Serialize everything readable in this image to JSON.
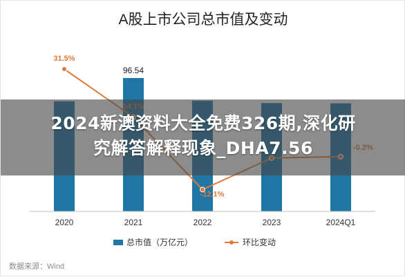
{
  "chart_data": {
    "type": "bar+line",
    "title": "A股上市公司总市值及变动",
    "categories": [
      "2020",
      "2021",
      "2022",
      "2023",
      "2024Q1"
    ],
    "series": [
      {
        "name": "总市值（万亿元）",
        "type": "bar",
        "color": "#1f77a6",
        "values": [
          79.7,
          96.54,
          80.1,
          78.4,
          78.2
        ],
        "labels": [
          "",
          "96.54",
          "",
          "",
          ""
        ]
      },
      {
        "name": "环比变动",
        "type": "line",
        "color": "#e07b39",
        "values": [
          31.5,
          14.1,
          -12.1,
          -0.7,
          -0.2
        ],
        "labels": [
          "31.5%",
          "14.1%",
          "-12.1%",
          "",
          "-0.2%"
        ]
      }
    ],
    "bar_axis_range": [
      0,
      120
    ],
    "line_axis_range": [
      -20,
      40
    ],
    "grid": false,
    "legend_position": "bottom"
  },
  "banner": {
    "line1": "2024新澳资料大全免费326期,深化研",
    "line2": "究解答解释现象_DHA7.56"
  },
  "source_note": "数据来源：Wind"
}
